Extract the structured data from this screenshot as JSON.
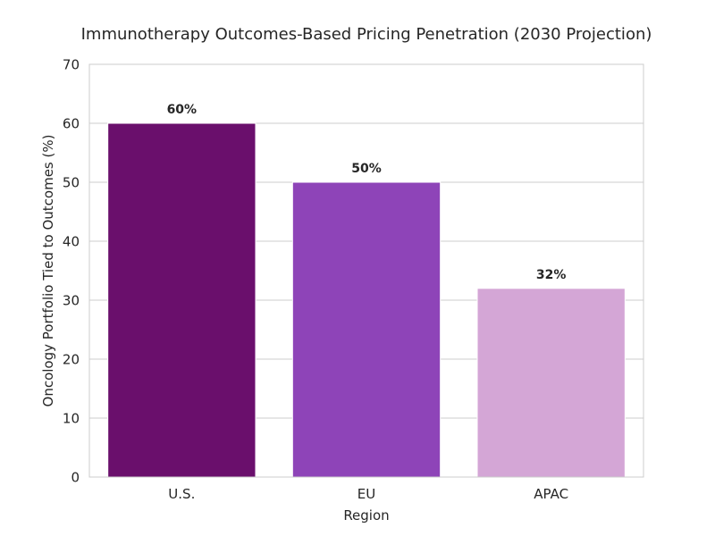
{
  "chart_data": {
    "type": "bar",
    "title": "Immunotherapy Outcomes-Based Pricing Penetration (2030 Projection)",
    "xlabel": "Region",
    "ylabel": "Oncology Portfolio Tied to Outcomes (%)",
    "categories": [
      "U.S.",
      "EU",
      "APAC"
    ],
    "values": [
      60,
      50,
      32
    ],
    "data_labels": [
      "60%",
      "50%",
      "32%"
    ],
    "colors": [
      "#6a0f6c",
      "#8e44b8",
      "#d4a6d6"
    ],
    "ylim": [
      0,
      70
    ],
    "yticks": [
      0,
      10,
      20,
      30,
      40,
      50,
      60,
      70
    ],
    "grid": true
  }
}
